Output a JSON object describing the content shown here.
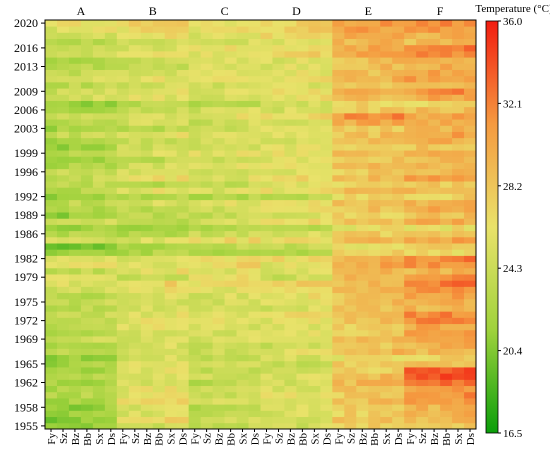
{
  "chart_data": {
    "type": "heatmap",
    "groups": [
      "A",
      "B",
      "C",
      "D",
      "E",
      "F"
    ],
    "columns": [
      "Fy",
      "Sz",
      "Bz",
      "Bb",
      "Sx",
      "Ds"
    ],
    "y_tick_labels": [
      "2020",
      "2016",
      "2013",
      "2009",
      "2006",
      "2003",
      "1999",
      "1996",
      "1992",
      "1989",
      "1986",
      "1982",
      "1979",
      "1975",
      "1972",
      "1969",
      "1965",
      "1962",
      "1958",
      "1955"
    ],
    "ylim": [
      1955,
      2020
    ],
    "colorbar": {
      "title": "Temperature (°C)",
      "tick_labels": [
        "36.0",
        "32.1",
        "28.2",
        "24.3",
        "20.4",
        "16.5"
      ],
      "range": [
        16.5,
        36.0
      ],
      "colors": [
        "#0a9e0a",
        "#9fd23c",
        "#e9e26a",
        "#f59a40",
        "#f21c10"
      ]
    },
    "group_means": [
      [
        21,
        20.8,
        21.4,
        21.2,
        22.2,
        23.2,
        22.6,
        22.2,
        23.4,
        21.6,
        22,
        21.2,
        23.2,
        22,
        24.6,
        22.6,
        22.6,
        23.8,
        24,
        23.6,
        23.8,
        23.2,
        24.4,
        25.6,
        26.4,
        23.6,
        26.2,
        25.4,
        21.2,
        20.4,
        24.8,
        22.8,
        21.6,
        24.6,
        21.4,
        22.4,
        23.6,
        21.6,
        22.8,
        23.2,
        23.8,
        24.2,
        22.6,
        21.8,
        23.2,
        21.4,
        22.6,
        24.2,
        22.2,
        23.2,
        24,
        22.4,
        21.4,
        24.8,
        24.6,
        23.4,
        25.2,
        24,
        23.2,
        22.8,
        24.8,
        23.6,
        23.2,
        24.6,
        25.6,
        26.4
      ],
      [
        24.6,
        26.8,
        25.4,
        25.6,
        26.4,
        26,
        26,
        25.2,
        25.2,
        25.8,
        25.4,
        25.2,
        25.6,
        25,
        25.4,
        24.8,
        25.8,
        26,
        25.6,
        25,
        24.8,
        25.4,
        26.2,
        27,
        24,
        26,
        25.6,
        25.4,
        22.6,
        21.8,
        25.2,
        22.8,
        21.4,
        23,
        23.4,
        23.4,
        24.8,
        22.6,
        25.8,
        22.8,
        26.2,
        24.8,
        24.6,
        23.4,
        25.2,
        24.6,
        24,
        25.6,
        23,
        24.8,
        25.2,
        24,
        23.6,
        25.6,
        25.8,
        24.4,
        26,
        24.4,
        23.8,
        24.4,
        25.8,
        25.2,
        24.6,
        26.2,
        26.8,
        27.4
      ],
      [
        23.4,
        24.2,
        24.2,
        23.4,
        25.4,
        23.8,
        24.2,
        23.2,
        24.4,
        23.6,
        24.4,
        24,
        24.2,
        24.6,
        24.8,
        24.8,
        25,
        26.2,
        25.2,
        25.2,
        24.8,
        25.2,
        25.8,
        26.2,
        26.2,
        25.4,
        26.8,
        26.4,
        22.8,
        23.4,
        26.6,
        24.4,
        22.8,
        25.2,
        23.8,
        24.6,
        25.6,
        22.6,
        25.2,
        23.8,
        25.4,
        24.6,
        25.2,
        24.2,
        25.8,
        24,
        24.4,
        25.2,
        24.6,
        24.4,
        25.8,
        24.8,
        23.2,
        24.6,
        25.4,
        24.8,
        25.8,
        25.2,
        25.8,
        25.6,
        26,
        26,
        24.8,
        25.6,
        26.4,
        26.4
      ],
      [
        24.6,
        25,
        25.4,
        25,
        24.6,
        26,
        25.2,
        24.6,
        25.6,
        24.4,
        24.2,
        25,
        26,
        24.6,
        25.4,
        25.8,
        25.4,
        25.6,
        26.4,
        24.8,
        25.8,
        26.2,
        26.8,
        27.6,
        24.2,
        25,
        26,
        26.8,
        23,
        24,
        26.4,
        25,
        23.4,
        26.2,
        24.8,
        26.2,
        25.8,
        23.6,
        26.4,
        25.6,
        26.6,
        25.6,
        25.8,
        25.6,
        26.2,
        25.6,
        25.4,
        25.6,
        25.6,
        25.4,
        26.6,
        25.2,
        25,
        26,
        26.4,
        25.2,
        26.6,
        25.6,
        25.4,
        25.6,
        27,
        26.4,
        26,
        26.8,
        27.4,
        27.4
      ],
      [
        27.6,
        28.4,
        27.6,
        27.6,
        28.4,
        28,
        28.6,
        29.2,
        28.8,
        27.4,
        27.8,
        26.6,
        29.2,
        28,
        28.6,
        27.6,
        28,
        28.4,
        28.4,
        28.2,
        28.6,
        28.4,
        28.8,
        29.2,
        29.4,
        28.8,
        30,
        29.4,
        27,
        26.6,
        28.8,
        27.6,
        26.2,
        28.4,
        27.4,
        28.4,
        28.8,
        27,
        28.6,
        27.2,
        28.6,
        27.8,
        28.8,
        27.6,
        28.8,
        27.4,
        28.4,
        28.4,
        27.8,
        30.2,
        31.4,
        28,
        27.2,
        28.8,
        29.6,
        28.2,
        29.4,
        28.6,
        28.8,
        28.6,
        30,
        30.2,
        29.2,
        30,
        30.6,
        31
      ],
      [
        28,
        29.2,
        29.4,
        29.4,
        30.6,
        31.2,
        30.8,
        32.8,
        33.8,
        33.4,
        28.2,
        27.2,
        29.4,
        29.6,
        30.2,
        30.6,
        30.2,
        31.8,
        31.6,
        29.4,
        29.6,
        30.4,
        31.8,
        32.2,
        31,
        29.4,
        31.2,
        32,
        26.8,
        27.8,
        30.4,
        28.2,
        26.4,
        29.8,
        28.4,
        30,
        29.8,
        27.4,
        29.4,
        28,
        30.6,
        28.8,
        29.2,
        29,
        30,
        28.4,
        29.4,
        30.4,
        29.2,
        29.6,
        30,
        28.6,
        26.8,
        30.2,
        31.4,
        28.6,
        30.8,
        30.2,
        29.6,
        29.8,
        31.8,
        32.4,
        28.8,
        29.6,
        30.8,
        31.4
      ]
    ]
  }
}
